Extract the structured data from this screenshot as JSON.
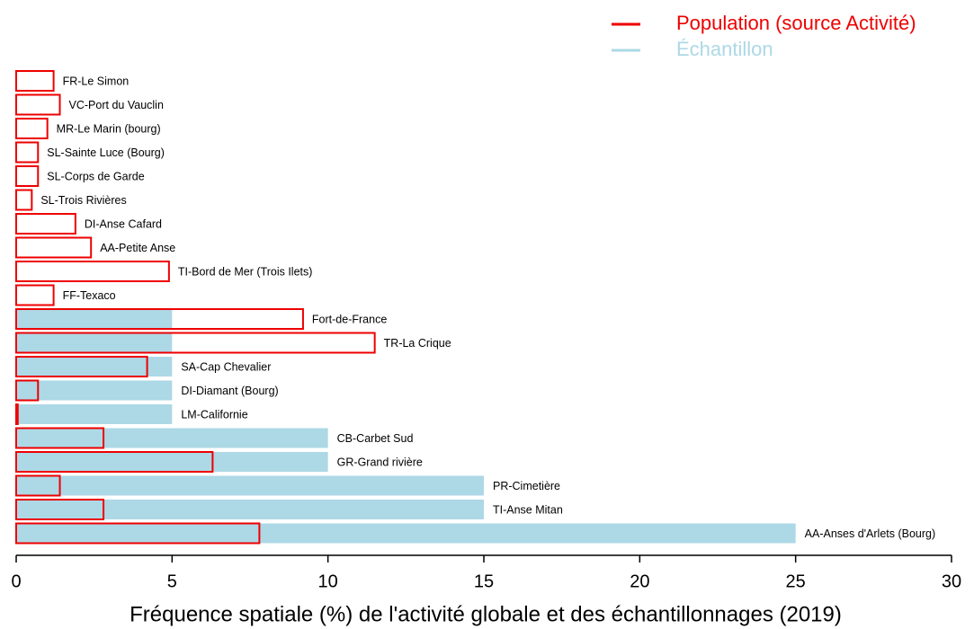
{
  "chart_data": {
    "type": "barh",
    "xlabel": "Fréquence spatiale (%) de l'activité globale et des échantillonnages (2019)",
    "categories": [
      "FR-Le Simon",
      "VC-Port du Vauclin",
      "MR-Le Marin (bourg)",
      "SL-Sainte Luce (Bourg)",
      "SL-Corps de Garde",
      "SL-Trois Rivières",
      "DI-Anse Cafard",
      "AA-Petite Anse",
      "TI-Bord de Mer (Trois Ilets)",
      "FF-Texaco",
      "Fort-de-France",
      "TR-La Crique",
      "SA-Cap Chevalier",
      "DI-Diamant (Bourg)",
      "LM-Californie",
      "CB-Carbet Sud",
      "GR-Grand rivière",
      "PR-Cimetière",
      "TI-Anse Mitan",
      "AA-Anses d'Arlets (Bourg)"
    ],
    "series": [
      {
        "name": "Population (source Activité)",
        "color": "#ee0000",
        "style": "outline",
        "values": [
          1.2,
          1.4,
          1.0,
          0.7,
          0.7,
          0.5,
          1.9,
          2.4,
          4.9,
          1.2,
          9.2,
          11.5,
          4.2,
          0.7,
          0.05,
          2.8,
          6.3,
          1.4,
          2.8,
          7.8
        ]
      },
      {
        "name": "Échantillon",
        "color": "#add8e6",
        "style": "filled",
        "values": [
          0,
          0,
          0,
          0,
          0,
          0,
          0,
          0,
          0,
          0,
          5,
          5,
          5,
          5,
          5,
          10,
          10,
          15,
          15,
          25
        ]
      }
    ],
    "xlim": [
      0,
      30
    ],
    "xticks": [
      0,
      5,
      10,
      15,
      20,
      25,
      30
    ],
    "legend": "top-right"
  }
}
